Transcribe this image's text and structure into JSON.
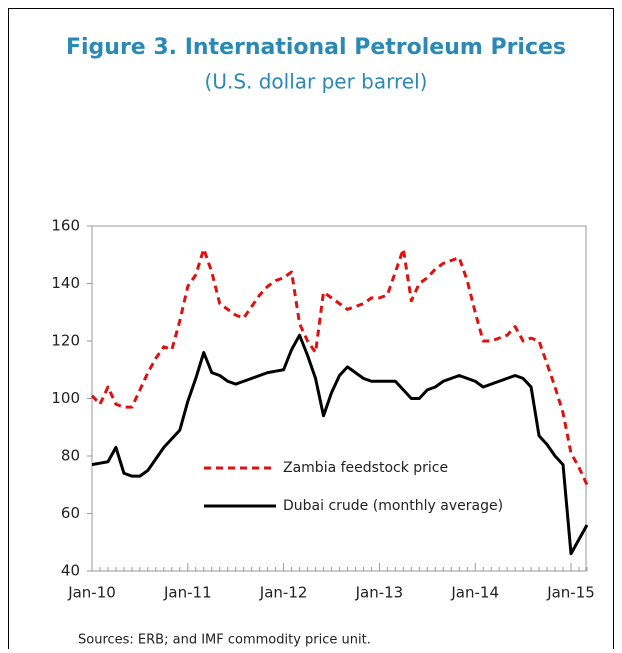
{
  "chart_data": {
    "type": "line",
    "title": "Figure 3.  International Petroleum Prices",
    "subtitle": "(U.S. dollar per barrel)",
    "source": "Sources: ERB; and IMF commodity price unit.",
    "categories": [
      "Jan-10",
      null,
      null,
      null,
      null,
      null,
      null,
      null,
      null,
      null,
      null,
      null,
      "Jan-11",
      null,
      null,
      null,
      null,
      null,
      null,
      null,
      null,
      null,
      null,
      null,
      "Jan-12",
      null,
      null,
      null,
      null,
      null,
      null,
      null,
      null,
      null,
      null,
      null,
      "Jan-13",
      null,
      null,
      null,
      null,
      null,
      null,
      null,
      null,
      null,
      null,
      null,
      "Jan-14",
      null,
      null,
      null,
      null,
      null,
      null,
      null,
      null,
      null,
      null,
      null,
      "Jan-15",
      null,
      null
    ],
    "series": [
      {
        "name": "Zambia feedstock price",
        "color": "#e01010",
        "dashed": true,
        "values": [
          101,
          98,
          104,
          98,
          97,
          97,
          103,
          109,
          114,
          118,
          117,
          127,
          139,
          143,
          152,
          144,
          133,
          131,
          129,
          128,
          132,
          136,
          139,
          141,
          142,
          144,
          126,
          120,
          116,
          137,
          135,
          133,
          131,
          132,
          133,
          135,
          135,
          136,
          144,
          152,
          134,
          140,
          142,
          145,
          147,
          148,
          149,
          141,
          130,
          120,
          120,
          121,
          122,
          125,
          120,
          121,
          120,
          112,
          104,
          95,
          81,
          76,
          70
        ]
      },
      {
        "name": "Dubai crude (monthly average)",
        "color": "#000000",
        "dashed": false,
        "values": [
          77,
          77.5,
          78,
          83,
          74,
          73,
          73,
          75,
          79,
          83,
          86,
          89,
          99,
          107,
          116,
          109,
          108,
          106,
          105,
          106,
          107,
          108,
          109,
          109.5,
          110,
          117,
          122,
          115,
          107,
          94,
          102,
          108,
          111,
          109,
          107,
          106,
          106,
          106,
          106,
          103,
          100,
          100,
          103,
          104,
          106,
          107,
          108,
          107,
          106,
          104,
          105,
          106,
          107,
          108,
          107,
          104,
          87,
          84,
          80,
          77,
          46,
          51,
          56
        ]
      }
    ],
    "ylim": [
      40,
      160
    ],
    "yticks": [
      40,
      60,
      80,
      100,
      120,
      140,
      160
    ],
    "grid": false,
    "legend": "bottom"
  }
}
